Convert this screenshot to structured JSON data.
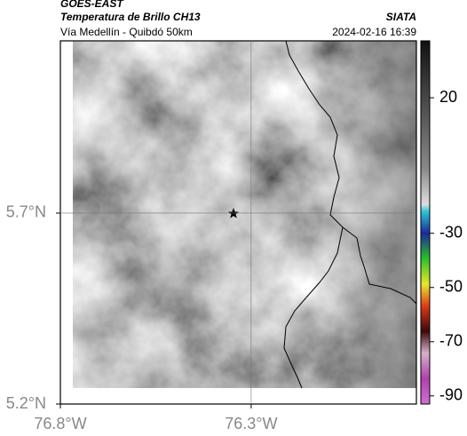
{
  "header": {
    "satellite": "GOES-EAST",
    "title": "Temperatura de Brillo CH13",
    "subtitle": "Vía Medellín - Quibdó 50km",
    "source": "SIATA",
    "datetime": "2024-02-16 16:39"
  },
  "map": {
    "lonlim": [
      -76.8,
      -75.867
    ],
    "latlim": [
      5.2,
      6.151
    ],
    "lon_ticks": [
      {
        "value": -76.8,
        "label": "76.8°W"
      },
      {
        "value": -76.3,
        "label": "76.3°W"
      }
    ],
    "lat_ticks": [
      {
        "value": 5.7,
        "label": "5.7°N"
      },
      {
        "value": 5.2,
        "label": "5.2°N"
      }
    ]
  },
  "colorbar": {
    "lim": [
      -93,
      41
    ],
    "ticks": [
      20,
      -30,
      -50,
      -70,
      -90
    ]
  }
}
